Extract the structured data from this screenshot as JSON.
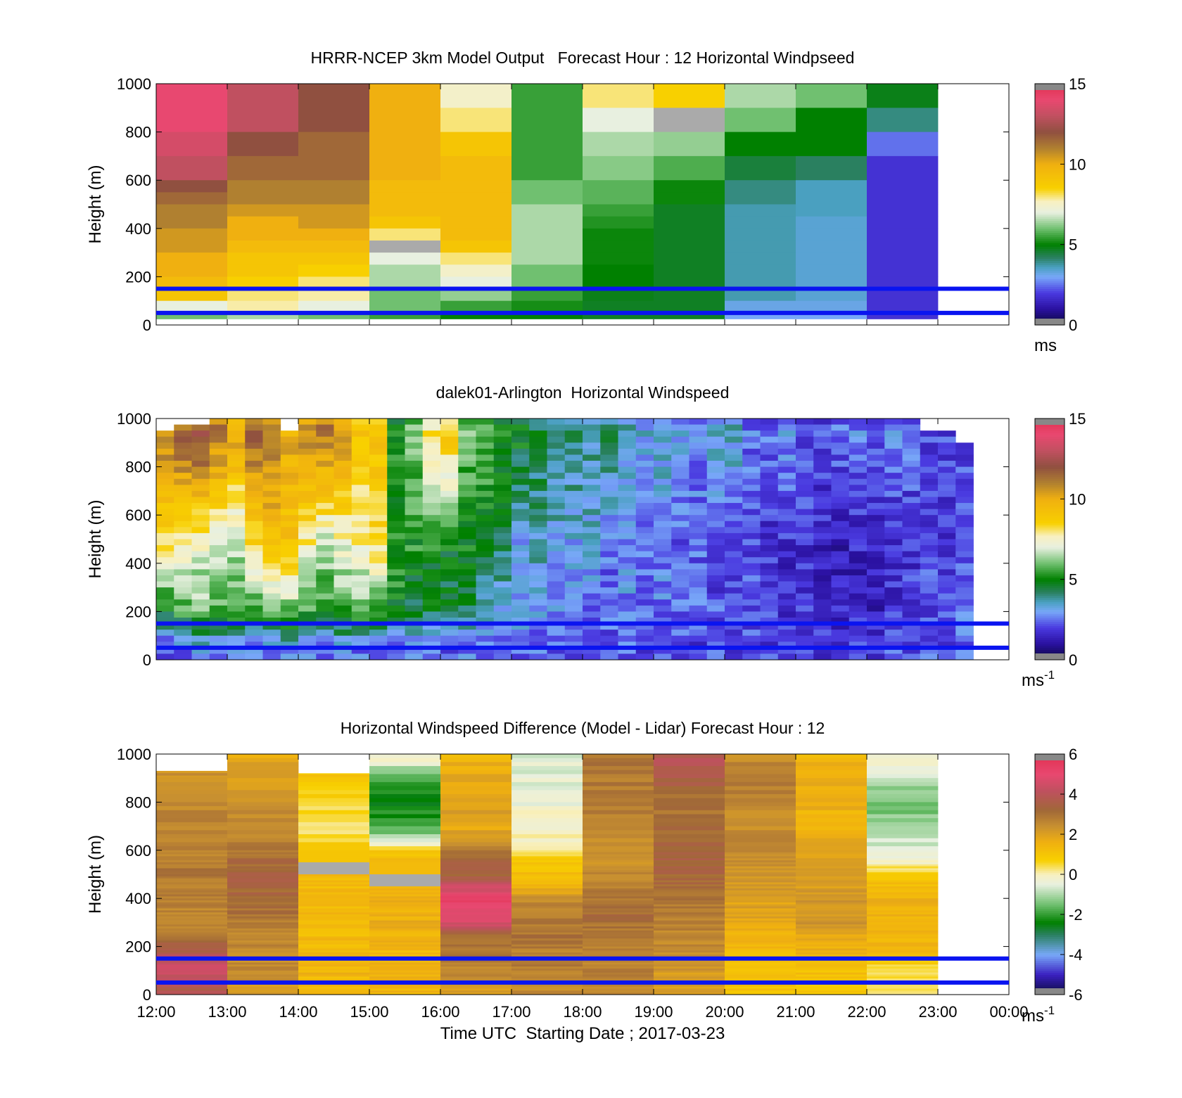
{
  "chart_data": [
    {
      "type": "heatmap",
      "title": "HRRR-NCEP 3km Model Output   Forecast Hour : 12 Horizontal Windpseed",
      "ylabel": "Height (m)",
      "xlabel": "",
      "ylim": [
        0,
        1000
      ],
      "yticks": [
        "0",
        "200",
        "400",
        "600",
        "800",
        "1000"
      ],
      "colorbar": {
        "range": [
          0,
          15
        ],
        "ticks": [
          "0",
          "5",
          "10",
          "15"
        ],
        "unit": "ms",
        "unit_sup": "",
        "scale": "wind"
      },
      "reference_lines_m": [
        150,
        50
      ],
      "line_color": "#0a14f0",
      "cells": {
        "columns": [
          "12:00",
          "13:00",
          "14:00",
          "15:00",
          "16:00",
          "17:00",
          "18:00",
          "19:00",
          "20:00",
          "21:00",
          "22:00"
        ],
        "y_top_m": [
          1000,
          900,
          800,
          700,
          600,
          550,
          500,
          450,
          400,
          350,
          300,
          250,
          200,
          150,
          100,
          50
        ],
        "y_bottom_m": 25,
        "values": [
          [
            14,
            13,
            12,
            10,
            7.5,
            5.5,
            8,
            8.5,
            6.5,
            6,
            4.8
          ],
          [
            14,
            13,
            12,
            10,
            8,
            5.5,
            7,
            null,
            6,
            5,
            4
          ],
          [
            13.5,
            12,
            11.5,
            10,
            9,
            5.5,
            6.5,
            6.3,
            5,
            5,
            2.5
          ],
          [
            13,
            11.5,
            11.5,
            10,
            9.5,
            5.5,
            6.2,
            5.7,
            4.5,
            4.2,
            1.8
          ],
          [
            12,
            11,
            11,
            9.5,
            9.5,
            6,
            5.8,
            5.1,
            4,
            3.6,
            1.8
          ],
          [
            11.5,
            11,
            11,
            9.5,
            9.5,
            6,
            5.8,
            5.1,
            4,
            3.6,
            1.8
          ],
          [
            11,
            10.5,
            10.5,
            9.5,
            9.5,
            6.5,
            5.5,
            4.7,
            3.7,
            3.6,
            1.8
          ],
          [
            11,
            10,
            10.5,
            9,
            9.5,
            6.5,
            5.3,
            4.7,
            3.7,
            3.4,
            1.8
          ],
          [
            10.5,
            10,
            10,
            8,
            9.5,
            6.5,
            5.1,
            4.7,
            3.7,
            3.4,
            1.8
          ],
          [
            10.5,
            9.5,
            9.5,
            null,
            9,
            6.5,
            5.1,
            4.7,
            3.7,
            3.4,
            1.8
          ],
          [
            10,
            9,
            9,
            7,
            8,
            6.5,
            5.1,
            4.7,
            3.7,
            3.4,
            1.8
          ],
          [
            10,
            9,
            8.5,
            6.5,
            7.5,
            6,
            5,
            4.7,
            3.7,
            3.4,
            1.8
          ],
          [
            9.5,
            8.5,
            8,
            6.5,
            7,
            6,
            5,
            4.7,
            3.7,
            3.4,
            1.8
          ],
          [
            9,
            8,
            7.8,
            6,
            6.3,
            5.5,
            4.8,
            4.7,
            3.7,
            3.4,
            1.8
          ],
          [
            7,
            7.8,
            7,
            6,
            5.5,
            5.2,
            4.7,
            4.7,
            3.2,
            3.2,
            1.8
          ],
          [
            6,
            6.5,
            6,
            5.5,
            5,
            5,
            4.7,
            4.7,
            3,
            3,
            1.8
          ]
        ]
      }
    },
    {
      "type": "heatmap",
      "title": "dalek01-Arlington  Horizontal Windspeed",
      "ylabel": "Height (m)",
      "xlabel": "",
      "ylim": [
        0,
        1000
      ],
      "yticks": [
        "0",
        "200",
        "400",
        "600",
        "800",
        "1000"
      ],
      "colorbar": {
        "range": [
          0,
          15
        ],
        "ticks": [
          "0",
          "5",
          "10",
          "15"
        ],
        "unit": "ms",
        "unit_sup": "-1",
        "scale": "wind"
      },
      "reference_lines_m": [
        150,
        50
      ],
      "line_color": "#0a14f0",
      "profile_interval_min": 15,
      "profiles": {
        "start": "12:00",
        "top_m": [
          960,
          980,
          980,
          1000,
          1000,
          1000,
          1000,
          960,
          1000,
          1000,
          1000,
          1000,
          1000,
          1000,
          1000,
          1000,
          1000,
          1000,
          1000,
          1000,
          1000,
          1000,
          1000,
          1000,
          1000,
          1000,
          1000,
          1000,
          1000,
          1000,
          1000,
          1000,
          1000,
          1000,
          1000,
          1000,
          1000,
          1000,
          1000,
          1000,
          1000,
          1000,
          1000,
          950,
          950,
          900
        ],
        "value_at_900m": [
          11,
          11.5,
          12,
          11,
          10,
          11.5,
          11,
          10,
          10.5,
          11,
          10.5,
          9,
          9,
          5,
          6,
          8,
          8.5,
          6,
          6,
          5,
          4.8,
          4.5,
          4.2,
          4,
          3.8,
          4,
          3.5,
          3.2,
          3.5,
          3,
          2.8,
          3.2,
          3.4,
          2.5,
          2.3,
          2.8,
          2.2,
          2,
          2.4,
          2.6,
          2.3,
          2.6,
          2.4,
          2.2,
          2,
          2.2
        ],
        "value_at_450m": [
          8,
          7.5,
          7,
          6.5,
          6.5,
          8,
          9,
          9,
          7.5,
          6.5,
          7,
          7.5,
          8,
          5.5,
          5.2,
          5,
          4.8,
          5,
          4.5,
          4.2,
          3,
          3.5,
          3.2,
          3,
          3.2,
          2.5,
          2.8,
          2.4,
          2.6,
          2.2,
          2.4,
          2,
          2.1,
          2.2,
          1.8,
          1.6,
          1.7,
          1.5,
          1.4,
          1.5,
          1.3,
          1.6,
          1.8,
          2,
          1.8,
          2.2
        ],
        "value_at_200m": [
          5,
          5.5,
          6,
          5.8,
          5.5,
          5.5,
          5.8,
          6,
          5.5,
          5.2,
          5.6,
          5.8,
          5.5,
          4.8,
          4.5,
          4.5,
          4.5,
          4.5,
          3.5,
          3.2,
          3,
          2.8,
          2.8,
          3,
          2.6,
          2.5,
          2.8,
          2.4,
          2.6,
          2.3,
          2.4,
          2.2,
          2,
          2.2,
          2,
          1.8,
          2,
          1.6,
          1.5,
          1.6,
          1.4,
          1.8,
          2,
          2.2,
          2,
          2.4
        ],
        "value_at_50m": [
          2,
          2.5,
          3,
          2.8,
          3,
          2.6,
          2.8,
          3,
          2.7,
          2.5,
          2.8,
          2.6,
          2.5,
          2.4,
          2.5,
          2.6,
          2.4,
          2.5,
          2.3,
          2.2,
          2.5,
          2.4,
          2.2,
          2.3,
          2.1,
          2.2,
          2.3,
          2,
          2.2,
          2.1,
          2,
          2.2,
          2,
          2.1,
          2,
          2,
          1.9,
          2,
          2,
          2.1,
          2,
          2.3,
          2.2,
          2.4,
          2.2,
          2.5
        ]
      }
    },
    {
      "type": "heatmap",
      "title": "Horizontal Windspeed Difference (Model - Lidar) Forecast Hour : 12",
      "ylabel": "Height (m)",
      "xlabel": "Time UTC  Starting Date ; 2017-03-23",
      "ylim": [
        0,
        1000
      ],
      "yticks": [
        "0",
        "200",
        "400",
        "600",
        "800",
        "1000"
      ],
      "xticks": [
        "12:00",
        "13:00",
        "14:00",
        "15:00",
        "16:00",
        "17:00",
        "18:00",
        "19:00",
        "20:00",
        "21:00",
        "22:00",
        "23:00",
        "00:00"
      ],
      "colorbar": {
        "range": [
          -6,
          6
        ],
        "ticks": [
          "-6",
          "-4",
          "-2",
          "0",
          "2",
          "4",
          "6"
        ],
        "unit": "ms",
        "unit_sup": "-1",
        "scale": "diff"
      },
      "reference_lines_m": [
        150,
        50
      ],
      "line_color": "#0a14f0",
      "cells": {
        "columns": [
          "12:00",
          "13:00",
          "14:00",
          "15:00",
          "16:00",
          "17:00",
          "18:00",
          "19:00",
          "20:00",
          "21:00",
          "22:00"
        ],
        "y_top_m": [
          1000,
          900,
          800,
          700,
          600,
          550,
          500,
          450,
          400,
          350,
          300,
          250,
          200,
          150,
          100,
          50
        ],
        "y_bottom_m": 0,
        "top_of_data_m": [
          930,
          1000,
          920,
          1000,
          1000,
          1000,
          1000,
          1000,
          1000,
          1000,
          1000
        ],
        "values": [
          [
            2.3,
            1.8,
            1,
            0,
            1.5,
            -0.5,
            3,
            4,
            2.5,
            1.5,
            0
          ],
          [
            2.4,
            2,
            1,
            -1.8,
            1.8,
            -0.5,
            2.8,
            3.5,
            2.8,
            1.7,
            -1
          ],
          [
            2.5,
            2.3,
            0.5,
            -2.5,
            2,
            -0.3,
            2.7,
            3,
            2.6,
            1.6,
            -1.5
          ],
          [
            2.6,
            2.5,
            0.2,
            -1.8,
            1.8,
            -0.2,
            2.6,
            3.2,
            2.5,
            1.5,
            -1
          ],
          [
            2.7,
            3,
            1,
            1,
            3,
            0.3,
            2.5,
            3.5,
            2.4,
            1.8,
            -0.5
          ],
          [
            2.8,
            3.2,
            null,
            1.3,
            3.5,
            1,
            2.4,
            3.4,
            2.3,
            1.9,
            0
          ],
          [
            2.9,
            3.4,
            1.3,
            null,
            3.2,
            1.3,
            2.6,
            3.3,
            2.2,
            2,
            0.8
          ],
          [
            2.8,
            3.3,
            1.3,
            1.5,
            4.5,
            1.5,
            2.8,
            3.2,
            2.1,
            2.1,
            1.3
          ],
          [
            2.7,
            3.2,
            1.3,
            1.6,
            5.2,
            2.5,
            3,
            3,
            2,
            2.3,
            1.5
          ],
          [
            2.6,
            3,
            1.4,
            1.6,
            5,
            2.7,
            3.2,
            2.8,
            1.9,
            2.2,
            1.5
          ],
          [
            2.7,
            2.8,
            1.4,
            1.6,
            4.5,
            2.9,
            3,
            2.7,
            1.8,
            2.3,
            1.5
          ],
          [
            2.8,
            2.6,
            1.3,
            1.5,
            3.3,
            3,
            2.8,
            2.6,
            1.5,
            1.7,
            1.5
          ],
          [
            3.5,
            2.5,
            1.3,
            1.4,
            2.8,
            2.8,
            2.7,
            2.5,
            1.4,
            1.6,
            1.4
          ],
          [
            4.2,
            2.4,
            1.3,
            1.4,
            2.8,
            2.7,
            2.6,
            2.3,
            1.3,
            1.3,
            1
          ],
          [
            4.5,
            2.6,
            1.5,
            1.6,
            2.6,
            2.8,
            2.8,
            2.2,
            1.2,
            1.2,
            0.3
          ],
          [
            3.8,
            2.2,
            1.2,
            1.4,
            2.2,
            2.4,
            2.5,
            2,
            1,
            1,
            0.5
          ]
        ]
      }
    }
  ]
}
